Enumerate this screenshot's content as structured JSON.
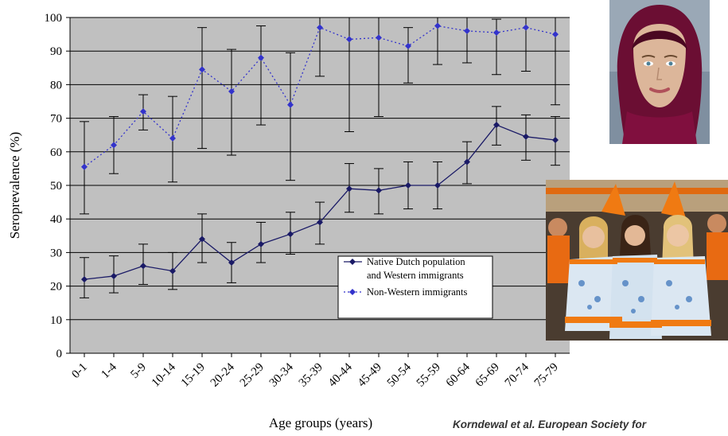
{
  "chart_data": {
    "type": "line",
    "xlabel": "Age groups (years)",
    "ylabel": "Seroprevalence (%)",
    "ylim": [
      0,
      100
    ],
    "yticks": [
      0,
      10,
      20,
      30,
      40,
      50,
      60,
      70,
      80,
      90,
      100
    ],
    "grid": true,
    "legend_position": "lower-right",
    "categories": [
      "0-1",
      "1-4",
      "5-9",
      "10-14",
      "15-19",
      "20-24",
      "25-29",
      "30-34",
      "35-39",
      "40-44",
      "45-49",
      "50-54",
      "55-59",
      "60-64",
      "65-69",
      "70-74",
      "75-79"
    ],
    "series": [
      {
        "name": "Native Dutch population and Western immigrants",
        "legend_lines": [
          "Native Dutch population",
          "and Western immigrants"
        ],
        "color": "#1a1a66",
        "line_style": "solid",
        "values": [
          22,
          23,
          26,
          24.5,
          34,
          27,
          32.5,
          35.5,
          39,
          49,
          48.5,
          50,
          50,
          57,
          68,
          64.5,
          63.5
        ],
        "err_low": [
          16.5,
          18,
          20.5,
          19,
          27,
          21,
          27,
          29.5,
          32.5,
          42,
          41.5,
          43,
          43,
          50.5,
          62,
          57.5,
          56
        ],
        "err_high": [
          28.5,
          29,
          32.5,
          30,
          41.5,
          33,
          39,
          42,
          45,
          56.5,
          55,
          57,
          57,
          63,
          73.5,
          71,
          70.5
        ]
      },
      {
        "name": "Non-Western immigrants",
        "legend_lines": [
          "Non-Western immigrants"
        ],
        "color": "#3333cc",
        "line_style": "dotted",
        "values": [
          55.5,
          62,
          72,
          64,
          84.5,
          78,
          88,
          74,
          97,
          93.5,
          94,
          91.5,
          97.5,
          96,
          95.5,
          97,
          95
        ],
        "err_low": [
          41.5,
          53.5,
          66.5,
          51,
          61,
          59,
          68,
          51.5,
          82.5,
          66,
          70.5,
          80.5,
          86,
          86.5,
          83,
          84,
          74
        ],
        "err_high": [
          69,
          70.5,
          77,
          76.5,
          97,
          90.5,
          97.5,
          89.5,
          100,
          100,
          100,
          97,
          100,
          100,
          99.5,
          100,
          100
        ]
      }
    ]
  },
  "citation": "Korndewal et al. European Society for",
  "images": {
    "woman_photo": "woman-in-hijab-photo",
    "group_photo": "women-in-orange-costumes-photo"
  }
}
